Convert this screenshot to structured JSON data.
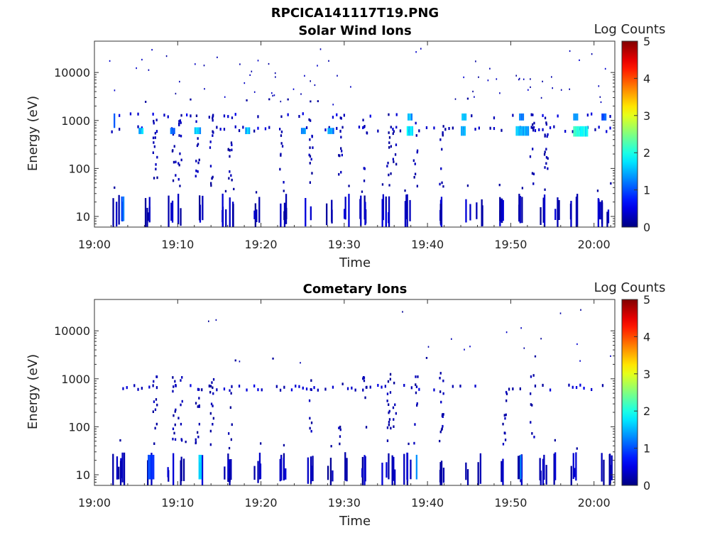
{
  "figure": {
    "suptitle": "RPCICA141117T19.PNG"
  },
  "chart_data": [
    {
      "type": "heatmap",
      "title": "Solar Wind Ions",
      "xlabel": "Time",
      "ylabel": "Energy (eV)",
      "x_tick_labels": [
        "19:00",
        "19:10",
        "19:20",
        "19:30",
        "19:40",
        "19:50",
        "20:00"
      ],
      "x_ticks_minutes": [
        0,
        10,
        20,
        30,
        40,
        50,
        60
      ],
      "xlim_minutes": [
        0,
        62.5
      ],
      "yscale": "log",
      "ylim": [
        6,
        45000
      ],
      "y_tick_labels": [
        "10",
        "100",
        "1000",
        "10000"
      ],
      "y_ticks": [
        10,
        100,
        1000,
        10000
      ],
      "colorbar": {
        "label": "Log Counts",
        "ticks": [
          "0",
          "1",
          "2",
          "3",
          "4",
          "5"
        ],
        "range": [
          0,
          5
        ],
        "colormap": "jet"
      },
      "blobs": [
        {
          "t": 2.3,
          "dt": 0.3,
          "e_lo": 700,
          "e_hi": 1400,
          "v": 1.3
        },
        {
          "t": 5.3,
          "dt": 0.7,
          "e_lo": 520,
          "e_hi": 700,
          "v": 1.7
        },
        {
          "t": 9.1,
          "dt": 0.6,
          "e_lo": 520,
          "e_hi": 700,
          "v": 1.2
        },
        {
          "t": 12.0,
          "dt": 0.8,
          "e_lo": 520,
          "e_hi": 720,
          "v": 1.6
        },
        {
          "t": 18.1,
          "dt": 0.7,
          "e_lo": 520,
          "e_hi": 720,
          "v": 1.6
        },
        {
          "t": 24.8,
          "dt": 0.5,
          "e_lo": 520,
          "e_hi": 700,
          "v": 1.3
        },
        {
          "t": 28.0,
          "dt": 0.8,
          "e_lo": 520,
          "e_hi": 700,
          "v": 1.4
        },
        {
          "t": 37.5,
          "dt": 0.8,
          "e_lo": 480,
          "e_hi": 760,
          "v": 1.9
        },
        {
          "t": 37.6,
          "dt": 0.5,
          "e_lo": 1000,
          "e_hi": 1400,
          "v": 1.5
        },
        {
          "t": 44.0,
          "dt": 0.6,
          "e_lo": 480,
          "e_hi": 760,
          "v": 1.6
        },
        {
          "t": 44.1,
          "dt": 0.5,
          "e_lo": 1000,
          "e_hi": 1400,
          "v": 1.5
        },
        {
          "t": 50.6,
          "dt": 1.6,
          "e_lo": 480,
          "e_hi": 760,
          "v": 1.5
        },
        {
          "t": 51.0,
          "dt": 0.6,
          "e_lo": 1000,
          "e_hi": 1400,
          "v": 1.4
        },
        {
          "t": 57.5,
          "dt": 1.7,
          "e_lo": 460,
          "e_hi": 760,
          "v": 2.0
        },
        {
          "t": 57.5,
          "dt": 0.7,
          "e_lo": 1000,
          "e_hi": 1400,
          "v": 1.3
        },
        {
          "t": 60.9,
          "dt": 0.5,
          "e_lo": 1000,
          "e_hi": 1400,
          "v": 1.1
        },
        {
          "t": 3.2,
          "dt": 0.4,
          "e_lo": 8,
          "e_hi": 26,
          "v": 1.2
        }
      ],
      "bursts": [
        2.3,
        3.2,
        6.4,
        9.1,
        10.3,
        12.5,
        15.6,
        16.2,
        19.5,
        22.6,
        25.6,
        28.2,
        30.1,
        32.1,
        34.7,
        35.6,
        37.5,
        41.6,
        44.7,
        46.2,
        48.6,
        51.2,
        53.8,
        55.5,
        57.5,
        60.8,
        61.8
      ],
      "cols": [
        7.2,
        9.5,
        10.2,
        12.3,
        14.0,
        16.2,
        22.4,
        25.9,
        29.5,
        32.4,
        35.3,
        36.0,
        38.5,
        41.6,
        52.5,
        54.2
      ],
      "seed": 17
    },
    {
      "type": "heatmap",
      "title": "Cometary Ions",
      "xlabel": "Time",
      "ylabel": "Energy (eV)",
      "x_tick_labels": [
        "19:00",
        "19:10",
        "19:20",
        "19:30",
        "19:40",
        "19:50",
        "20:00"
      ],
      "x_ticks_minutes": [
        0,
        10,
        20,
        30,
        40,
        50,
        60
      ],
      "xlim_minutes": [
        0,
        62.5
      ],
      "yscale": "log",
      "ylim": [
        6,
        45000
      ],
      "y_tick_labels": [
        "10",
        "100",
        "1000",
        "10000"
      ],
      "y_ticks": [
        10,
        100,
        1000,
        10000
      ],
      "colorbar": {
        "label": "Log Counts",
        "ticks": [
          "0",
          "1",
          "2",
          "3",
          "4",
          "5"
        ],
        "range": [
          0,
          5
        ],
        "colormap": "jet"
      },
      "blobs": [
        {
          "t": 12.5,
          "dt": 0.4,
          "e_lo": 8,
          "e_hi": 26,
          "v": 1.8
        },
        {
          "t": 38.6,
          "dt": 0.3,
          "e_lo": 8,
          "e_hi": 26,
          "v": 1.5
        },
        {
          "t": 51.1,
          "dt": 0.3,
          "e_lo": 8,
          "e_hi": 26,
          "v": 1.4
        },
        {
          "t": 6.4,
          "dt": 0.8,
          "e_lo": 8,
          "e_hi": 26,
          "v": 0.9
        }
      ],
      "bursts": [
        2.3,
        3.2,
        6.4,
        9.1,
        10.4,
        12.5,
        15.8,
        16.5,
        19.5,
        22.6,
        25.8,
        28.2,
        30.1,
        32.1,
        34.7,
        35.6,
        37.5,
        41.6,
        44.5,
        46.2,
        48.6,
        51.2,
        53.8,
        55.5,
        57.5,
        60.8,
        61.8
      ],
      "cols": [
        7.2,
        9.5,
        10.2,
        12.3,
        14.0,
        16.2,
        25.9,
        29.5,
        32.4,
        35.3,
        36.0,
        38.5,
        41.6,
        49.2,
        52.5
      ],
      "seed": 29
    }
  ]
}
